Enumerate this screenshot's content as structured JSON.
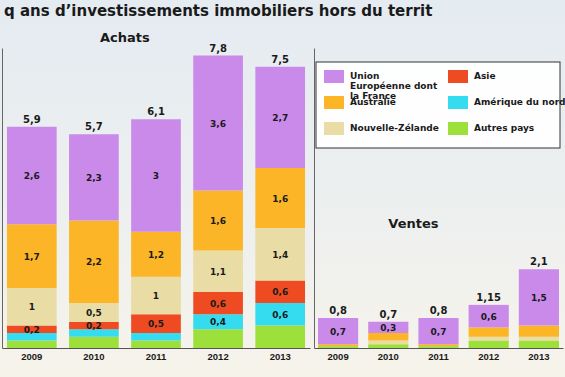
{
  "chart_data": [
    {
      "type": "bar",
      "title": "q ans d’investissements immobiliers hors du territ",
      "subtitle": "Achats",
      "categories": [
        "2009",
        "2010",
        "2011",
        "2012",
        "2013"
      ],
      "series": [
        {
          "name": "Autres pays",
          "color": "#9de03c",
          "values": [
            0.2,
            0.3,
            0.2,
            0.5,
            0.6
          ]
        },
        {
          "name": "Amérique du nord",
          "color": "#35dcef",
          "values": [
            0.2,
            0.2,
            0.2,
            0.4,
            0.6
          ],
          "value_labels": [
            null,
            null,
            null,
            "0,4",
            "0,6"
          ]
        },
        {
          "name": "Asie",
          "color": "#ef4b22",
          "values": [
            0.2,
            0.2,
            0.5,
            0.6,
            0.6
          ],
          "value_labels": [
            "0,2",
            "0,2",
            "0,5",
            "0,6",
            "0,6"
          ]
        },
        {
          "name": "Nouvelle-Zélande",
          "color": "#e9dca4",
          "values": [
            1,
            0.5,
            1,
            1.1,
            1.4
          ],
          "value_labels": [
            "1",
            "0,5",
            "1",
            "1,1",
            "1,4"
          ]
        },
        {
          "name": "Australie",
          "color": "#fbb526",
          "values": [
            1.7,
            2.2,
            1.2,
            1.6,
            1.6
          ],
          "value_labels": [
            "1,7",
            "2,2",
            "1,2",
            "1,6",
            "1,6"
          ]
        },
        {
          "name": "Union Européenne dont la France",
          "color": "#c98ae9",
          "values": [
            2.6,
            2.3,
            3,
            3.6,
            2.7
          ],
          "value_labels": [
            "2,6",
            "2,3",
            "3",
            "3,6",
            "2,7"
          ]
        }
      ],
      "totals": {
        "values": [
          5.9,
          5.7,
          6.1,
          7.8,
          7.5
        ],
        "value_labels": [
          "5,9",
          "5,7",
          "6,1",
          "7,8",
          "7,5"
        ]
      },
      "ylim": [
        0,
        8
      ],
      "stacked": true,
      "data_labels": true,
      "tick_labels": "x",
      "grid": false,
      "legend": "top-right"
    },
    {
      "type": "bar",
      "subtitle": "Ventes",
      "categories": [
        "2009",
        "2010",
        "2011",
        "2012",
        "2013"
      ],
      "series": [
        {
          "color": "#9de03c",
          "values": [
            0.05,
            0.1,
            0.05,
            0.2,
            0.2
          ]
        },
        {
          "color": "#35dcef",
          "values": [
            0,
            0,
            0,
            0,
            0
          ]
        },
        {
          "color": "#ef4b22",
          "values": [
            0,
            0,
            0,
            0,
            0
          ]
        },
        {
          "color": "#e9dca4",
          "values": [
            0,
            0.1,
            0,
            0.1,
            0.1
          ]
        },
        {
          "color": "#fbb526",
          "values": [
            0.05,
            0.2,
            0.05,
            0.25,
            0.3
          ]
        },
        {
          "color": "#c98ae9",
          "values": [
            0.7,
            0.3,
            0.7,
            0.6,
            1.5
          ],
          "value_labels": [
            "0,7",
            "0,3",
            "0,7",
            "0,6",
            "1,5"
          ]
        }
      ],
      "totals": {
        "values": [
          0.8,
          0.7,
          0.8,
          1.15,
          2.1
        ],
        "value_labels": [
          "0,8",
          "0,7",
          "0,8",
          "1,15",
          "2,1"
        ]
      },
      "ylim": [
        0,
        8
      ],
      "stacked": true,
      "data_labels": true,
      "tick_labels": "x",
      "grid": false
    }
  ]
}
